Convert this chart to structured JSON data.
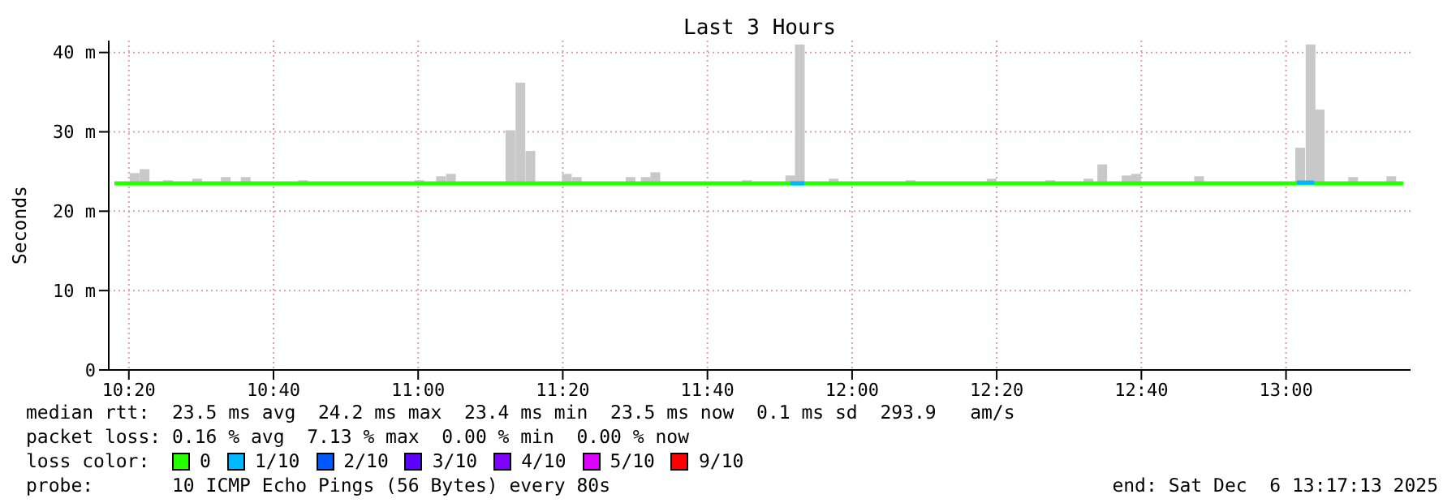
{
  "chart_data": {
    "type": "bar",
    "title": "Last 3 Hours",
    "ylabel": "Seconds",
    "xlim": [
      10.287,
      13.287
    ],
    "xticks": [
      {
        "value": 10.3333,
        "label": "10:20"
      },
      {
        "value": 10.6667,
        "label": "10:40"
      },
      {
        "value": 11,
        "label": "11:00"
      },
      {
        "value": 11.3333,
        "label": "11:20"
      },
      {
        "value": 11.6667,
        "label": "11:40"
      },
      {
        "value": 12,
        "label": "12:00"
      },
      {
        "value": 12.3333,
        "label": "12:20"
      },
      {
        "value": 12.6667,
        "label": "12:40"
      },
      {
        "value": 13,
        "label": "13:00"
      }
    ],
    "ylim": [
      0,
      41.5
    ],
    "yticks": [
      0,
      {
        "value": 10,
        "label": "10 m"
      },
      {
        "value": 20,
        "label": "20 m"
      },
      {
        "value": 30,
        "label": "30 m"
      },
      {
        "value": 40,
        "label": "40 m"
      }
    ],
    "grid": true,
    "legend": "bottom",
    "series": [
      {
        "color": "#c8c8c8",
        "x": [
          10.347,
          10.37,
          10.424,
          10.491,
          10.557,
          10.603,
          10.735,
          11.003,
          11.053,
          11.076,
          11.213,
          11.236,
          11.259,
          11.343,
          11.366,
          11.49,
          11.525,
          11.547,
          11.758,
          11.858,
          11.88,
          11.958,
          12.135,
          12.322,
          12.457,
          12.545,
          12.577,
          12.633,
          12.655,
          12.8,
          13.033,
          13.057,
          13.078,
          13.155,
          13.243
        ],
        "base": [
          23.5,
          23.5,
          23.5,
          23.5,
          23.5,
          23.5,
          23.5,
          23.5,
          23.5,
          23.5,
          23.5,
          23.5,
          23.5,
          23.5,
          23.5,
          23.5,
          23.5,
          23.5,
          23.5,
          23.5,
          23.5,
          23.5,
          23.5,
          23.5,
          23.5,
          23.5,
          23.5,
          23.5,
          23.5,
          23.5,
          23.5,
          23.5,
          23.5,
          23.5,
          23.5
        ],
        "values": [
          1.3,
          1.8,
          0.4,
          0.6,
          0.8,
          0.8,
          0.4,
          0.4,
          0.9,
          1.2,
          6.7,
          12.7,
          4.1,
          1.2,
          0.8,
          0.8,
          0.8,
          1.4,
          0.4,
          1.0,
          17.5,
          0.6,
          0.4,
          0.6,
          0.4,
          0.6,
          2.4,
          1.0,
          1.2,
          0.9,
          4.5,
          17.5,
          9.3,
          0.8,
          0.9
        ]
      },
      {
        "type": "line",
        "name": "0",
        "color": "#26ff00",
        "x": [
          10.3,
          13.27
        ],
        "values": [
          23.5,
          23.5
        ]
      },
      {
        "type": "line",
        "name": "1/10",
        "color": "#00b8ff",
        "x": [
          11.858,
          11.89,
          11.9,
          13.025,
          13.065
        ],
        "values": [
          23.5,
          23.5,
          null,
          23.6,
          23.6
        ]
      },
      {
        "type": "line",
        "name": "2/10",
        "color": "#0059ff"
      },
      {
        "type": "line",
        "name": "3/10",
        "color": "#5e00ff"
      },
      {
        "type": "line",
        "name": "4/10",
        "color": "#7e00ff"
      },
      {
        "type": "line",
        "name": "5/10",
        "color": "#dd00ff"
      },
      {
        "type": "line",
        "name": "9/10",
        "color": "#ff0000"
      }
    ],
    "annotations": [
      "median rtt:  23.5 ms avg  24.2 ms max  23.4 ms min  23.5 ms now  0.1 ms sd  293.9   am/s",
      "packet loss: 0.16 % avg  7.13 % max  0.00 % min  0.00 % now",
      "loss color:",
      "probe:       10 ICMP Echo Pings (56 Bytes) every 80s",
      "end: Sat Dec  6 13:17:13 2025"
    ]
  }
}
